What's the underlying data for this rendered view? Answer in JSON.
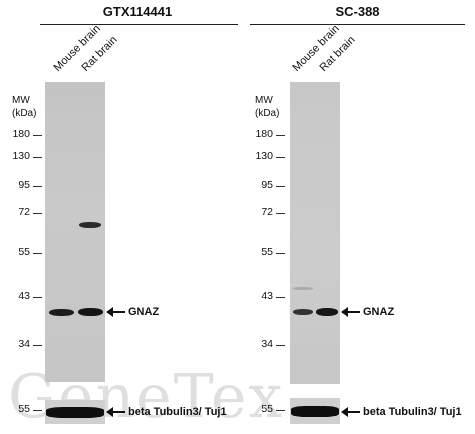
{
  "panels": [
    {
      "title": "GTX114441",
      "lanes": [
        "Mouse brain",
        "Rat brain"
      ],
      "mw_header": [
        "MW",
        "(kDa)"
      ],
      "markers": [
        "180",
        "130",
        "95",
        "72",
        "55",
        "43",
        "34"
      ],
      "target_label": "GNAZ",
      "loading_marker": "55",
      "loading_label": "beta Tubulin3/ Tuj1"
    },
    {
      "title": "SC-388",
      "lanes": [
        "Mouse brain",
        "Rat brain"
      ],
      "mw_header": [
        "MW",
        "(kDa)"
      ],
      "markers": [
        "180",
        "130",
        "95",
        "72",
        "55",
        "43",
        "34"
      ],
      "target_label": "GNAZ",
      "loading_marker": "55",
      "loading_label": "beta Tubulin3/ Tuj1"
    }
  ],
  "watermark": "GeneTex",
  "colors": {
    "blot_bg": "#c6c6c6",
    "band": "#151515",
    "text": "#111111"
  }
}
